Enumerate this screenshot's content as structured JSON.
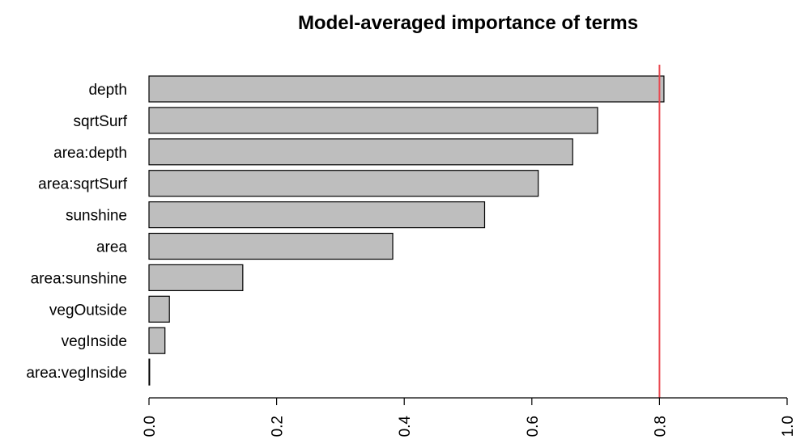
{
  "chart_data": {
    "type": "bar",
    "orientation": "horizontal",
    "title": "Model-averaged importance of terms",
    "xlabel": "",
    "ylabel": "",
    "categories": [
      "depth",
      "sqrtSurf",
      "area:depth",
      "area:sqrtSurf",
      "sunshine",
      "area",
      "area:sunshine",
      "vegOutside",
      "vegInside",
      "area:vegInside"
    ],
    "values": [
      0.807,
      0.703,
      0.664,
      0.61,
      0.526,
      0.382,
      0.147,
      0.032,
      0.025,
      0.001
    ],
    "xlim": [
      0,
      1.0
    ],
    "xticks": [
      "0.0",
      "0.2",
      "0.4",
      "0.6",
      "0.8",
      "1.0"
    ],
    "xtick_values": [
      0,
      0.2,
      0.4,
      0.6,
      0.8,
      1.0
    ],
    "reference_line": {
      "x": 0.8,
      "color": "#e8474f"
    },
    "bar_fill": "#bebebe",
    "bar_stroke": "#000000",
    "grid": false
  }
}
